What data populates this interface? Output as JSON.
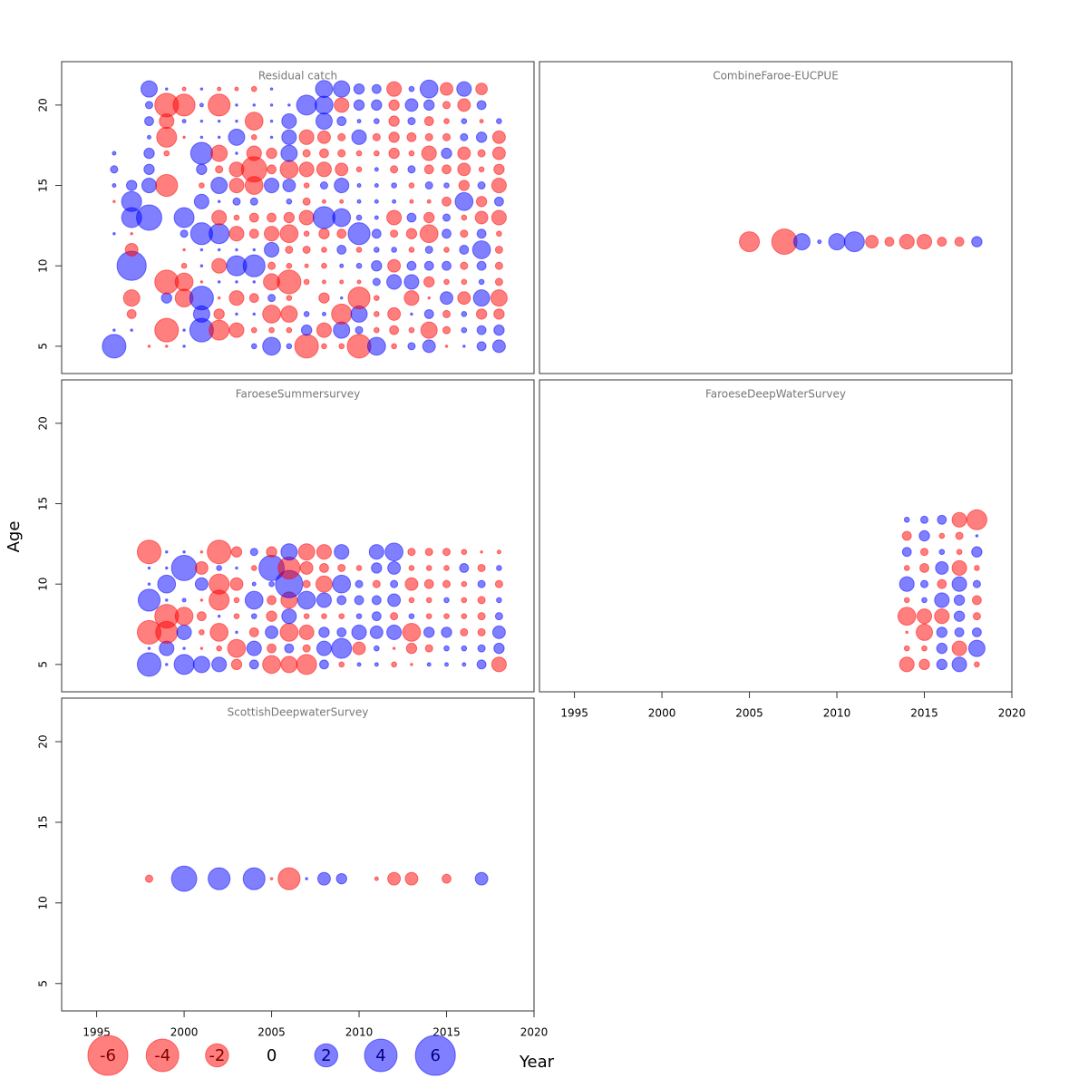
{
  "chart_data": [
    {
      "type": "bubble",
      "title": "Residual catch",
      "x": [
        1996,
        1997,
        1998,
        1999,
        2000,
        2001,
        2002,
        2003,
        2004,
        2005,
        2006,
        2007,
        2008,
        2009,
        2010,
        2011,
        2012,
        2013,
        2014,
        2015,
        2016,
        2017,
        2018
      ],
      "y": [
        5,
        6,
        7,
        8,
        9,
        10,
        11,
        12,
        13,
        14,
        15,
        16,
        17,
        18,
        19,
        20,
        21
      ],
      "values": [
        [
          2.1,
          null,
          -0.02,
          -0.02,
          0.02,
          null,
          null,
          null,
          0.1,
          1.2,
          0.1,
          -2.1,
          -0.1,
          -0.1,
          -2.1,
          1.2,
          -0.1,
          0.2,
          0.6,
          -0.02,
          0.02,
          0.3,
          0.6
        ],
        [
          0.02,
          0.02,
          null,
          -2.1,
          0.02,
          2.1,
          -1.5,
          -0.8,
          -0.1,
          -0.1,
          -0.1,
          0.4,
          -0.8,
          1.0,
          0.2,
          -0.1,
          -0.3,
          -0.1,
          -1.0,
          -0.2,
          0.1,
          0.3,
          0.4
        ],
        [
          null,
          -0.3,
          null,
          null,
          null,
          1.0,
          -0.4,
          0.02,
          0.02,
          -1.2,
          -1.0,
          0.1,
          0.05,
          -1.5,
          1.0,
          -0.1,
          -0.6,
          0.02,
          0.3,
          -0.2,
          0.1,
          -0.4,
          -0.4
        ],
        [
          null,
          -1.0,
          null,
          0.4,
          -1.2,
          2.1,
          -0.02,
          -0.8,
          -0.3,
          0.2,
          -0.1,
          null,
          -0.4,
          0.02,
          -1.8,
          -0.1,
          null,
          -0.8,
          -0.02,
          0.6,
          -0.6,
          1.0,
          -1.0
        ],
        [
          null,
          null,
          null,
          -2.1,
          -1.2,
          -0.02,
          0.02,
          0.02,
          0.02,
          -1.0,
          -2.1,
          -0.1,
          -0.05,
          -0.05,
          -0.05,
          0.2,
          0.8,
          0.8,
          -0.4,
          -0.1,
          -0.1,
          0.1,
          -0.2
        ],
        [
          null,
          3.2,
          null,
          null,
          -0.1,
          0.02,
          -0.8,
          1.5,
          1.8,
          -0.2,
          -0.1,
          -0.05,
          -0.1,
          0.05,
          0.1,
          0.4,
          -0.6,
          0.3,
          0.3,
          0.3,
          -0.2,
          0.3,
          -0.2
        ],
        [
          null,
          -0.6,
          null,
          null,
          -0.02,
          0.02,
          0.02,
          0.02,
          0.02,
          0.8,
          -0.2,
          -0.2,
          -0.1,
          0.3,
          -0.1,
          0.1,
          0.1,
          -0.1,
          0.2,
          -0.1,
          0.3,
          1.2,
          -0.2
        ],
        [
          0.02,
          -0.02,
          null,
          null,
          0.2,
          1.8,
          1.5,
          -0.8,
          -0.3,
          -0.8,
          -1.2,
          -0.1,
          -0.4,
          -0.3,
          1.8,
          0.3,
          -0.2,
          -0.4,
          -1.2,
          0.3,
          -0.2,
          0.3,
          -0.1
        ],
        [
          null,
          1.5,
          2.4,
          null,
          1.5,
          null,
          -0.8,
          -0.1,
          -0.3,
          -0.3,
          -0.4,
          -0.8,
          1.8,
          1.2,
          0.1,
          0.05,
          -0.8,
          0.3,
          -0.4,
          0.2,
          -0.1,
          -0.6,
          -0.8
        ],
        [
          -0.02,
          1.5,
          null,
          null,
          null,
          0.8,
          0.02,
          0.2,
          0.2,
          null,
          0.1,
          -0.2,
          -0.05,
          -0.05,
          0.05,
          0.05,
          0.05,
          -0.05,
          -0.05,
          -0.3,
          1.2,
          -0.4,
          0.3
        ],
        [
          0.05,
          0.4,
          0.8,
          -1.8,
          null,
          -0.1,
          1.0,
          -0.8,
          -1.2,
          0.8,
          0.6,
          -0.1,
          0.2,
          0.8,
          0.05,
          0.05,
          0.1,
          -0.1,
          0.2,
          0.1,
          -0.4,
          0.2,
          -0.8
        ],
        [
          0.2,
          null,
          0.4,
          null,
          null,
          0.4,
          -0.2,
          -0.8,
          -2.4,
          -0.3,
          -1.2,
          -0.8,
          -0.8,
          -0.6,
          -0.1,
          0.05,
          -0.2,
          0.2,
          -0.3,
          -0.3,
          -0.6,
          -0.1,
          -0.4
        ],
        [
          0.05,
          null,
          0.4,
          -0.1,
          null,
          1.8,
          -1.0,
          0.02,
          -0.8,
          -0.4,
          1.0,
          -0.2,
          -0.3,
          -0.2,
          -0.1,
          -0.1,
          -0.4,
          -0.1,
          -0.8,
          0.4,
          -0.6,
          -0.2,
          -0.6
        ],
        [
          null,
          null,
          0.05,
          -1.5,
          -0.02,
          0.02,
          0.02,
          1.0,
          -0.1,
          0.02,
          0.8,
          -0.8,
          -0.6,
          -0.2,
          0.8,
          -0.2,
          -0.4,
          -0.3,
          -0.2,
          -0.2,
          0.2,
          0.4,
          -0.6
        ],
        [
          null,
          null,
          0.3,
          -0.8,
          0.05,
          0.02,
          0.02,
          0.02,
          -1.2,
          0.02,
          0.8,
          null,
          1.0,
          0.3,
          0.05,
          0.1,
          -0.4,
          0.2,
          -0.3,
          -0.1,
          0.1,
          -0.05,
          0.1
        ],
        [
          null,
          null,
          0.2,
          -2.1,
          -1.8,
          0.05,
          -1.8,
          0.02,
          0.02,
          0.02,
          0.02,
          1.5,
          1.2,
          -0.8,
          0.4,
          0.4,
          -0.4,
          0.6,
          0.4,
          -0.2,
          -0.6,
          0.3,
          null
        ],
        [
          null,
          null,
          1.0,
          0.02,
          -0.05,
          0.02,
          -0.05,
          -0.05,
          -0.1,
          0.02,
          null,
          null,
          1.1,
          1.0,
          0.4,
          0.3,
          -0.8,
          0.1,
          1.2,
          -0.6,
          0.8,
          -0.5,
          null
        ]
      ],
      "xlim": [
        1993,
        2020
      ],
      "ylim": [
        3.3,
        22.7
      ],
      "yticks": [
        5,
        10,
        15,
        20
      ]
    },
    {
      "type": "bubble",
      "title": "CombineFaroe-EUCPUE",
      "x": [
        2005,
        2006,
        2007,
        2008,
        2009,
        2010,
        2011,
        2012,
        2013,
        2014,
        2015,
        2016,
        2017,
        2018
      ],
      "y": [
        11.5
      ],
      "values": [
        [
          -1.5,
          null,
          -2.4,
          1.0,
          0.05,
          1.0,
          1.5,
          -0.6,
          -0.3,
          -0.8,
          -0.8,
          -0.3,
          -0.3,
          0.4
        ]
      ],
      "xlim": [
        1993,
        2020
      ],
      "ylim": [
        3.3,
        22.7
      ]
    },
    {
      "type": "bubble",
      "title": "FaroeseSummersurvey",
      "x": [
        1998,
        1999,
        2000,
        2001,
        2002,
        2003,
        2004,
        2005,
        2006,
        2007,
        2008,
        2009,
        2010,
        2011,
        2012,
        2013,
        2014,
        2015,
        2016,
        2017,
        2018
      ],
      "y": [
        5,
        6,
        7,
        8,
        9,
        10,
        11,
        12
      ],
      "values": [
        [
          2.1,
          0.02,
          1.5,
          1.0,
          0.8,
          -0.4,
          0.3,
          -1.2,
          -1.0,
          -1.5,
          0.3,
          -0.1,
          0.05,
          0.05,
          -0.1,
          -0.02,
          0.05,
          0.05,
          0.05,
          0.3,
          -0.8
        ],
        [
          0.02,
          0.8,
          0.02,
          -0.02,
          -0.1,
          -1.2,
          0.8,
          -0.3,
          0.3,
          -0.2,
          0.8,
          1.5,
          -0.6,
          0.1,
          -0.02,
          -0.4,
          -0.2,
          0.1,
          0.1,
          0.2,
          0.4
        ],
        [
          -2.1,
          -1.8,
          0.8,
          -0.1,
          -1.2,
          0.02,
          -0.3,
          0.6,
          -1.2,
          -0.8,
          0.4,
          0.3,
          0.8,
          0.6,
          0.8,
          -1.2,
          0.4,
          0.4,
          -0.2,
          -0.2,
          0.6
        ],
        [
          null,
          -2.1,
          -1.2,
          -0.3,
          0.02,
          -0.1,
          0.1,
          -0.4,
          0.8,
          -0.1,
          -0.1,
          -0.1,
          0.1,
          0.3,
          -0.2,
          0.1,
          -0.1,
          -0.1,
          -0.1,
          -0.2,
          0.2
        ],
        [
          1.8,
          0.02,
          0.05,
          -0.02,
          -1.5,
          -0.1,
          1.2,
          -0.3,
          -1.0,
          1.2,
          0.8,
          0.3,
          0.3,
          0.3,
          0.6,
          -0.1,
          -0.1,
          0.1,
          -0.1,
          -0.2,
          0.1
        ],
        [
          0.02,
          1.2,
          null,
          0.6,
          -1.5,
          -0.6,
          0.05,
          0.1,
          2.8,
          -0.2,
          -1.0,
          1.2,
          0.2,
          -0.2,
          0.2,
          -0.6,
          -0.3,
          -0.2,
          -0.1,
          0.2,
          -0.2
        ],
        [
          0.02,
          0.02,
          2.4,
          -0.6,
          0.1,
          0.02,
          -0.1,
          2.4,
          -1.8,
          -0.6,
          -0.3,
          -0.2,
          -0.1,
          0.4,
          0.6,
          -0.1,
          -0.1,
          -0.1,
          0.3,
          -0.2,
          0.1
        ],
        [
          -2.1,
          0.02,
          0.02,
          -0.02,
          -2.1,
          -0.4,
          0.2,
          -0.4,
          1.0,
          -1.0,
          -0.8,
          0.8,
          null,
          0.8,
          1.2,
          -0.2,
          -0.2,
          -0.2,
          -0.1,
          -0.02,
          -0.05
        ]
      ],
      "xlim": [
        1993,
        2020
      ],
      "ylim": [
        3.3,
        22.7
      ],
      "yticks": [
        5,
        10,
        15,
        20
      ]
    },
    {
      "type": "bubble",
      "title": "FaroeseDeepWaterSurvey",
      "x": [
        2014,
        2015,
        2016,
        2017,
        2018
      ],
      "y": [
        5,
        6,
        7,
        8,
        9,
        10,
        11,
        12,
        13,
        14
      ],
      "values": [
        [
          -0.8,
          -0.4,
          0.4,
          0.8,
          -0.1
        ],
        [
          -0.1,
          -0.1,
          0.4,
          -0.8,
          1.0
        ],
        [
          -0.02,
          -1.0,
          0.4,
          0.3,
          0.3
        ],
        [
          -1.2,
          -0.8,
          -0.8,
          0.4,
          -0.2
        ],
        [
          -0.1,
          0.1,
          0.8,
          0.4,
          -0.3
        ],
        [
          0.8,
          0.2,
          -0.3,
          0.8,
          0.2
        ],
        [
          -0.1,
          -0.3,
          0.6,
          -0.8,
          -0.1
        ],
        [
          0.3,
          -0.2,
          0.1,
          -0.1,
          0.4
        ],
        [
          -0.3,
          0.4,
          -0.1,
          -0.2,
          0.02
        ],
        [
          0.1,
          0.2,
          0.3,
          -0.8,
          -1.5
        ]
      ],
      "xlim": [
        1993,
        2020
      ],
      "ylim": [
        3.3,
        22.7
      ],
      "xticks": [
        1995,
        2000,
        2005,
        2010,
        2015,
        2020
      ]
    },
    {
      "type": "bubble",
      "title": "ScottishDeepwaterSurvey",
      "x": [
        1998,
        1999,
        2000,
        2001,
        2002,
        2003,
        2004,
        2005,
        2006,
        2007,
        2008,
        2009,
        2010,
        2011,
        2012,
        2013,
        2014,
        2015,
        2016,
        2017
      ],
      "y": [
        11.5
      ],
      "values": [
        [
          -0.2,
          null,
          2.4,
          null,
          1.8,
          null,
          1.8,
          -0.02,
          -1.8,
          0.02,
          0.6,
          0.4,
          null,
          -0.05,
          -0.6,
          -0.6,
          null,
          -0.3,
          null,
          0.6
        ]
      ],
      "xlim": [
        1993,
        2020
      ],
      "ylim": [
        3.3,
        22.7
      ],
      "yticks": [
        5,
        10,
        15,
        20
      ],
      "xticks": [
        1995,
        2000,
        2005,
        2010,
        2015,
        2020
      ]
    }
  ],
  "ylabel": "Age",
  "xlabel": "Year",
  "colors": {
    "negative": "#ff0000",
    "positive": "#0000ff"
  },
  "opacity": 0.5,
  "legend": {
    "values": [
      -6,
      -4,
      -2,
      0,
      2,
      4,
      6
    ]
  }
}
